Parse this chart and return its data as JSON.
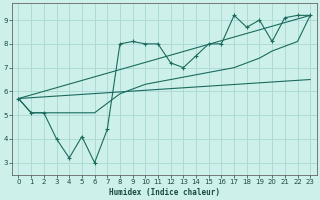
{
  "xlabel": "Humidex (Indice chaleur)",
  "xlim": [
    -0.5,
    23.5
  ],
  "ylim": [
    2.5,
    9.7
  ],
  "yticks": [
    3,
    4,
    5,
    6,
    7,
    8,
    9
  ],
  "xticks": [
    0,
    1,
    2,
    3,
    4,
    5,
    6,
    7,
    8,
    9,
    10,
    11,
    12,
    13,
    14,
    15,
    16,
    17,
    18,
    19,
    20,
    21,
    22,
    23
  ],
  "bg_color": "#cef0eb",
  "grid_color": "#aad8d2",
  "line_color": "#1a6b5e",
  "line1_x": [
    0,
    1,
    2,
    3,
    4,
    5,
    6,
    7,
    8,
    9,
    10,
    11,
    12,
    13,
    14,
    15,
    16,
    17,
    18,
    19,
    20,
    21,
    22,
    23
  ],
  "line1_y": [
    5.7,
    5.1,
    5.1,
    4.0,
    3.2,
    4.1,
    3.0,
    4.4,
    8.0,
    8.1,
    8.0,
    8.0,
    7.2,
    7.0,
    7.5,
    8.0,
    8.0,
    9.2,
    8.7,
    9.0,
    8.1,
    9.1,
    9.2,
    9.2
  ],
  "line2_x": [
    0,
    1,
    2,
    3,
    4,
    5,
    6,
    7,
    8,
    9,
    10,
    11,
    12,
    13,
    14,
    15,
    16,
    17,
    18,
    19,
    20,
    21,
    22,
    23
  ],
  "line2_y": [
    5.7,
    5.1,
    5.1,
    5.1,
    5.1,
    5.1,
    5.1,
    5.5,
    5.9,
    6.1,
    6.3,
    6.4,
    6.5,
    6.6,
    6.7,
    6.8,
    6.9,
    7.0,
    7.2,
    7.4,
    7.7,
    7.9,
    8.1,
    9.2
  ],
  "line3_x": [
    0,
    23
  ],
  "line3_y": [
    5.7,
    6.5
  ],
  "line4_x": [
    0,
    23
  ],
  "line4_y": [
    5.7,
    9.2
  ]
}
